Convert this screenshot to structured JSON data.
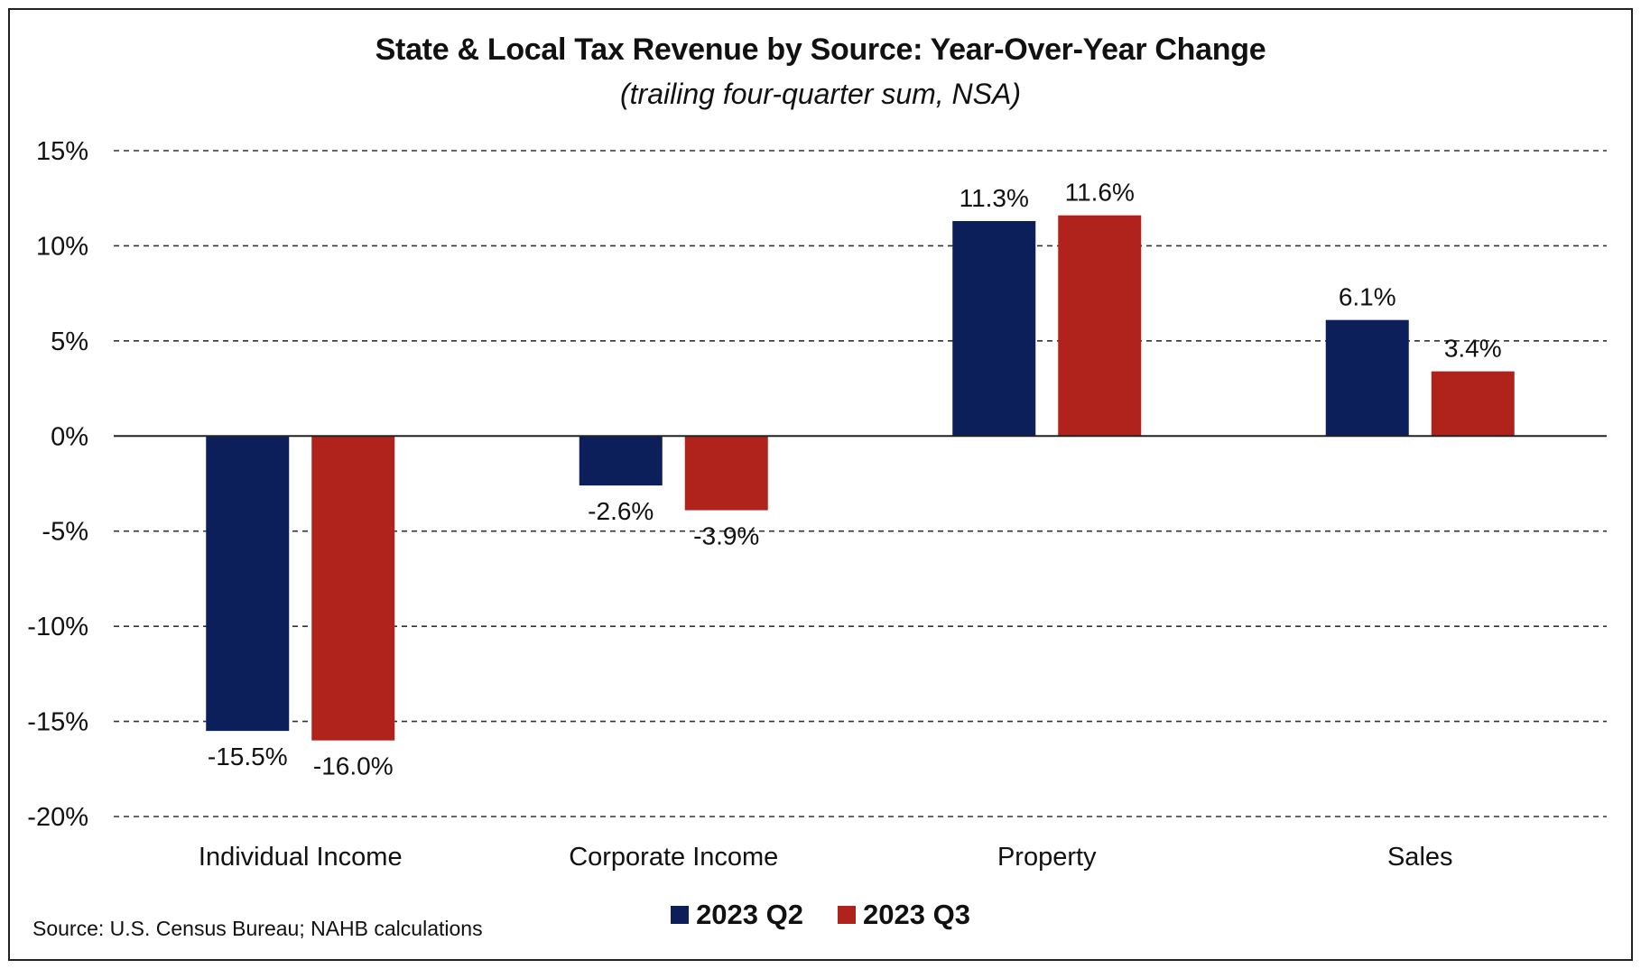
{
  "chart_data": {
    "type": "bar",
    "title": "State & Local Tax Revenue by Source: Year-Over-Year Change",
    "subtitle": "(trailing four-quarter sum, NSA)",
    "categories": [
      "Individual Income",
      "Corporate Income",
      "Property",
      "Sales"
    ],
    "series": [
      {
        "name": "2023 Q2",
        "values": [
          -15.5,
          -2.6,
          11.3,
          6.1
        ],
        "labels": [
          "-15.5%",
          "-2.6%",
          "11.3%",
          "6.1%"
        ],
        "color": "#0c1f5a"
      },
      {
        "name": "2023 Q3",
        "values": [
          -16.0,
          -3.9,
          11.6,
          3.4
        ],
        "labels": [
          "-16.0%",
          "-3.9%",
          "11.6%",
          "3.4%"
        ],
        "color": "#b0231c"
      }
    ],
    "ylim": [
      -20,
      15
    ],
    "yticks": [
      15,
      10,
      5,
      0,
      -5,
      -10,
      -15,
      -20
    ],
    "ytick_labels": [
      "15%",
      "10%",
      "5%",
      "0%",
      "-5%",
      "-10%",
      "-15%",
      "-20%"
    ],
    "grid": "dashed horizontal",
    "legend_position": "bottom-center",
    "source": "Source: U.S. Census Bureau; NAHB calculations"
  }
}
